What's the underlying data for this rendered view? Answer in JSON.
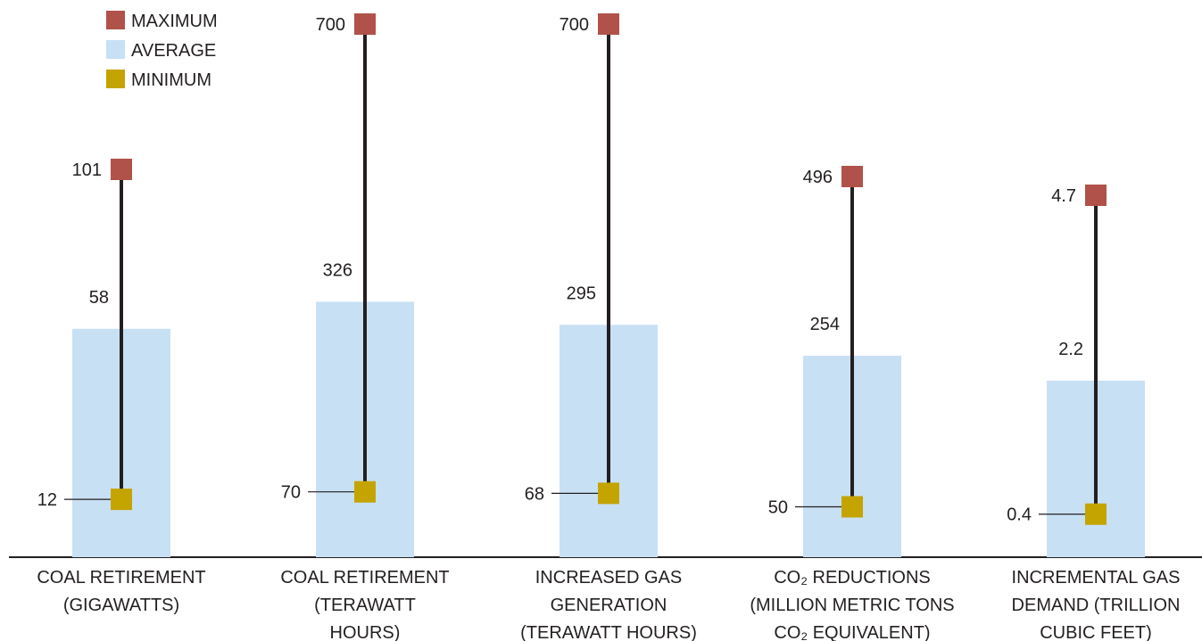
{
  "chart_data": {
    "type": "bar",
    "legend": {
      "placement": "top-left",
      "items": [
        {
          "key": "max",
          "label": "MAXIMUM",
          "color": "#b0524a"
        },
        {
          "key": "avg",
          "label": "AVERAGE",
          "color": "#c8e0f4"
        },
        {
          "key": "min",
          "label": "MINIMUM",
          "color": "#c4a400"
        }
      ]
    },
    "categories": [
      {
        "lines": [
          "COAL RETIREMENT",
          "(GIGAWATTS)"
        ],
        "min": 12,
        "avg": 58,
        "max": 101,
        "min_label": "12",
        "avg_label": "58",
        "max_label": "101"
      },
      {
        "lines": [
          "COAL RETIREMENT",
          "(TERAWATT",
          "HOURS)"
        ],
        "min": 70,
        "avg": 326,
        "max": 700,
        "min_label": "70",
        "avg_label": "326",
        "max_label": "700"
      },
      {
        "lines": [
          "INCREASED GAS",
          "GENERATION",
          "(TERAWATT HOURS)"
        ],
        "min": 68,
        "avg": 295,
        "max": 700,
        "min_label": "68",
        "avg_label": "295",
        "max_label": "700"
      },
      {
        "lines": [
          "CO₂ REDUCTIONS",
          "(MILLION METRIC TONS",
          "CO₂ EQUIVALENT)"
        ],
        "min": 50,
        "avg": 254,
        "max": 496,
        "min_label": "50",
        "avg_label": "254",
        "max_label": "496"
      },
      {
        "lines": [
          "INCREMENTAL GAS",
          "DEMAND (TRILLION",
          "CUBIC FEET)"
        ],
        "min": 0.4,
        "avg": 2.2,
        "max": 4.7,
        "min_label": "0.4",
        "avg_label": "2.2",
        "max_label": "4.7"
      }
    ],
    "colors": {
      "bar": "#c8e0f4",
      "max": "#b0524a",
      "min": "#c4a400",
      "whisker": "#231f20",
      "axis": "#231f20"
    }
  }
}
